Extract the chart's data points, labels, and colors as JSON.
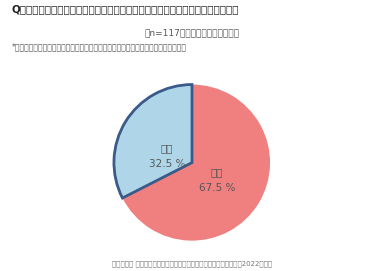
{
  "title": "Qあなたは、ご家族でキャンプ場やバーベキュー場に行ったことがありますか？",
  "subtitle": "（n=117）おうちキャンプ経験者",
  "note": "*キャンプ：バーベキュー、キャンプ、グランピングといった自然環境での活動全般",
  "footer": "積水ハウス 住生活研究所「自宅におけるアウトドアに関する調査（2022年）」",
  "slices": [
    67.5,
    32.5
  ],
  "labels": [
    "ある",
    "ない"
  ],
  "pct_labels": [
    "67.5 %",
    "32.5 %"
  ],
  "colors": [
    "#F08080",
    "#AED6E8"
  ],
  "slice_edge_colors": [
    "none",
    "#3A5A8A"
  ],
  "slice_linewidths": [
    0,
    2.0
  ],
  "label_colors": [
    "#555555",
    "#555555"
  ],
  "start_angle": 90,
  "counterclock": false,
  "background_color": "#FFFFFF",
  "title_fontsize": 7.5,
  "subtitle_fontsize": 6.5,
  "note_fontsize": 5.5,
  "footer_fontsize": 5.0,
  "pie_label_fontsize": 7.5,
  "pie_pct_fontsize": 7.5
}
